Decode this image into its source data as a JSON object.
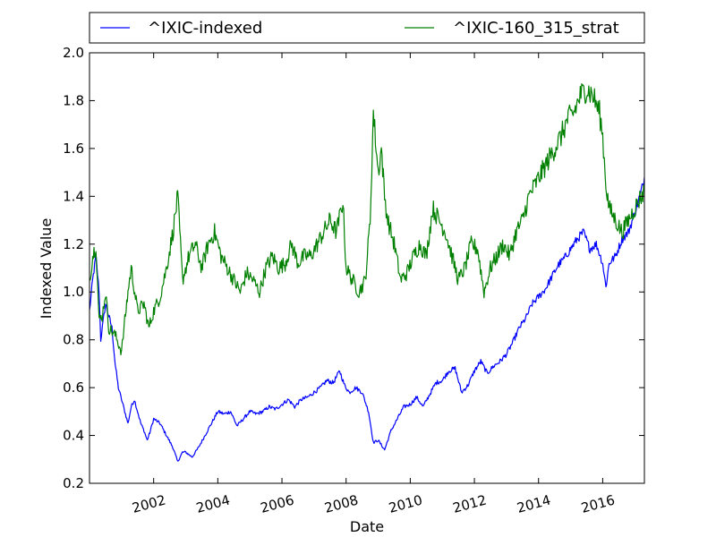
{
  "chart_data": {
    "type": "line",
    "title": "",
    "xlabel": "Date",
    "ylabel": "Indexed Value",
    "xlim": [
      2000.0,
      2017.3
    ],
    "ylim": [
      0.2,
      2.0
    ],
    "x_ticks": [
      2002,
      2004,
      2006,
      2008,
      2010,
      2012,
      2014,
      2016
    ],
    "x_tick_labels": [
      "2002",
      "2004",
      "2006",
      "2008",
      "2010",
      "2012",
      "2014",
      "2016"
    ],
    "y_ticks": [
      0.2,
      0.4,
      0.6,
      0.8,
      1.0,
      1.2,
      1.4,
      1.6,
      1.8,
      2.0
    ],
    "y_tick_labels": [
      "0.2",
      "0.4",
      "0.6",
      "0.8",
      "1.0",
      "1.2",
      "1.4",
      "1.6",
      "1.8",
      "2.0"
    ],
    "grid": false,
    "legend_position": "top, above plot, two columns",
    "series": [
      {
        "name": "^IXIC-indexed",
        "color": "#0000ff",
        "x": [
          2000.0,
          2000.1,
          2000.2,
          2000.3,
          2000.35,
          2000.4,
          2000.5,
          2000.6,
          2000.7,
          2000.8,
          2000.9,
          2001.0,
          2001.1,
          2001.2,
          2001.3,
          2001.4,
          2001.5,
          2001.6,
          2001.7,
          2001.8,
          2001.9,
          2002.0,
          2002.2,
          2002.4,
          2002.6,
          2002.75,
          2002.9,
          2003.0,
          2003.2,
          2003.4,
          2003.6,
          2003.8,
          2004.0,
          2004.2,
          2004.4,
          2004.6,
          2004.8,
          2005.0,
          2005.2,
          2005.4,
          2005.6,
          2005.8,
          2006.0,
          2006.2,
          2006.4,
          2006.6,
          2006.8,
          2007.0,
          2007.2,
          2007.4,
          2007.6,
          2007.8,
          2007.95,
          2008.1,
          2008.3,
          2008.5,
          2008.7,
          2008.85,
          2009.0,
          2009.2,
          2009.4,
          2009.6,
          2009.8,
          2010.0,
          2010.2,
          2010.4,
          2010.6,
          2010.8,
          2011.0,
          2011.2,
          2011.4,
          2011.6,
          2011.8,
          2012.0,
          2012.2,
          2012.4,
          2012.6,
          2012.8,
          2013.0,
          2013.2,
          2013.4,
          2013.6,
          2013.8,
          2014.0,
          2014.2,
          2014.4,
          2014.6,
          2014.8,
          2015.0,
          2015.2,
          2015.4,
          2015.6,
          2015.8,
          2016.0,
          2016.1,
          2016.2,
          2016.4,
          2016.6,
          2016.8,
          2017.0,
          2017.2,
          2017.3
        ],
        "values": [
          0.92,
          1.05,
          1.15,
          1.0,
          0.8,
          0.85,
          0.95,
          0.9,
          0.85,
          0.7,
          0.6,
          0.55,
          0.5,
          0.45,
          0.52,
          0.55,
          0.5,
          0.45,
          0.42,
          0.38,
          0.42,
          0.47,
          0.45,
          0.4,
          0.35,
          0.29,
          0.33,
          0.33,
          0.31,
          0.35,
          0.4,
          0.45,
          0.5,
          0.49,
          0.5,
          0.44,
          0.47,
          0.5,
          0.49,
          0.5,
          0.52,
          0.51,
          0.53,
          0.55,
          0.52,
          0.55,
          0.56,
          0.58,
          0.6,
          0.63,
          0.62,
          0.67,
          0.61,
          0.58,
          0.6,
          0.58,
          0.5,
          0.37,
          0.38,
          0.34,
          0.42,
          0.47,
          0.52,
          0.53,
          0.56,
          0.52,
          0.57,
          0.62,
          0.63,
          0.67,
          0.68,
          0.58,
          0.61,
          0.67,
          0.71,
          0.66,
          0.69,
          0.71,
          0.74,
          0.79,
          0.85,
          0.89,
          0.95,
          0.98,
          1.01,
          1.06,
          1.11,
          1.14,
          1.18,
          1.22,
          1.25,
          1.18,
          1.2,
          1.12,
          1.02,
          1.12,
          1.15,
          1.22,
          1.25,
          1.33,
          1.42,
          1.48
        ]
      },
      {
        "name": "^IXIC-160_315_strat",
        "color": "#008000",
        "x": [
          2000.0,
          2000.1,
          2000.2,
          2000.3,
          2000.4,
          2000.5,
          2000.6,
          2000.8,
          2001.0,
          2001.1,
          2001.2,
          2001.3,
          2001.5,
          2001.7,
          2001.85,
          2002.0,
          2002.2,
          2002.4,
          2002.6,
          2002.75,
          2002.9,
          2003.1,
          2003.3,
          2003.5,
          2003.7,
          2003.9,
          2004.1,
          2004.3,
          2004.5,
          2004.7,
          2004.9,
          2005.1,
          2005.3,
          2005.5,
          2005.7,
          2005.9,
          2006.1,
          2006.3,
          2006.5,
          2006.7,
          2006.9,
          2007.1,
          2007.3,
          2007.5,
          2007.7,
          2007.9,
          2008.0,
          2008.2,
          2008.4,
          2008.6,
          2008.75,
          2008.85,
          2009.0,
          2009.1,
          2009.2,
          2009.3,
          2009.5,
          2009.7,
          2009.9,
          2010.1,
          2010.3,
          2010.5,
          2010.7,
          2010.9,
          2011.1,
          2011.3,
          2011.5,
          2011.7,
          2011.9,
          2012.1,
          2012.3,
          2012.5,
          2012.7,
          2012.9,
          2013.1,
          2013.3,
          2013.5,
          2013.7,
          2013.9,
          2014.1,
          2014.3,
          2014.5,
          2014.7,
          2014.9,
          2015.1,
          2015.3,
          2015.5,
          2015.7,
          2015.9,
          2016.0,
          2016.1,
          2016.2,
          2016.4,
          2016.6,
          2016.8,
          2017.0,
          2017.2,
          2017.3
        ],
        "values": [
          1.05,
          1.15,
          1.2,
          0.88,
          0.9,
          1.0,
          0.85,
          0.82,
          0.75,
          0.88,
          1.0,
          1.1,
          0.92,
          0.95,
          0.85,
          0.92,
          0.98,
          1.1,
          1.25,
          1.4,
          1.05,
          1.15,
          1.2,
          1.1,
          1.2,
          1.25,
          1.15,
          1.1,
          1.05,
          1.0,
          1.08,
          1.05,
          1.0,
          1.1,
          1.15,
          1.1,
          1.12,
          1.2,
          1.12,
          1.15,
          1.15,
          1.2,
          1.25,
          1.3,
          1.25,
          1.38,
          1.1,
          1.05,
          1.0,
          1.05,
          1.3,
          1.75,
          1.5,
          1.6,
          1.4,
          1.3,
          1.2,
          1.05,
          1.08,
          1.15,
          1.2,
          1.15,
          1.35,
          1.3,
          1.25,
          1.15,
          1.05,
          1.1,
          1.2,
          1.18,
          1.0,
          1.1,
          1.15,
          1.2,
          1.15,
          1.25,
          1.3,
          1.4,
          1.45,
          1.5,
          1.55,
          1.6,
          1.65,
          1.72,
          1.75,
          1.82,
          1.85,
          1.82,
          1.75,
          1.65,
          1.45,
          1.35,
          1.3,
          1.25,
          1.3,
          1.35,
          1.4,
          1.42
        ]
      }
    ]
  }
}
